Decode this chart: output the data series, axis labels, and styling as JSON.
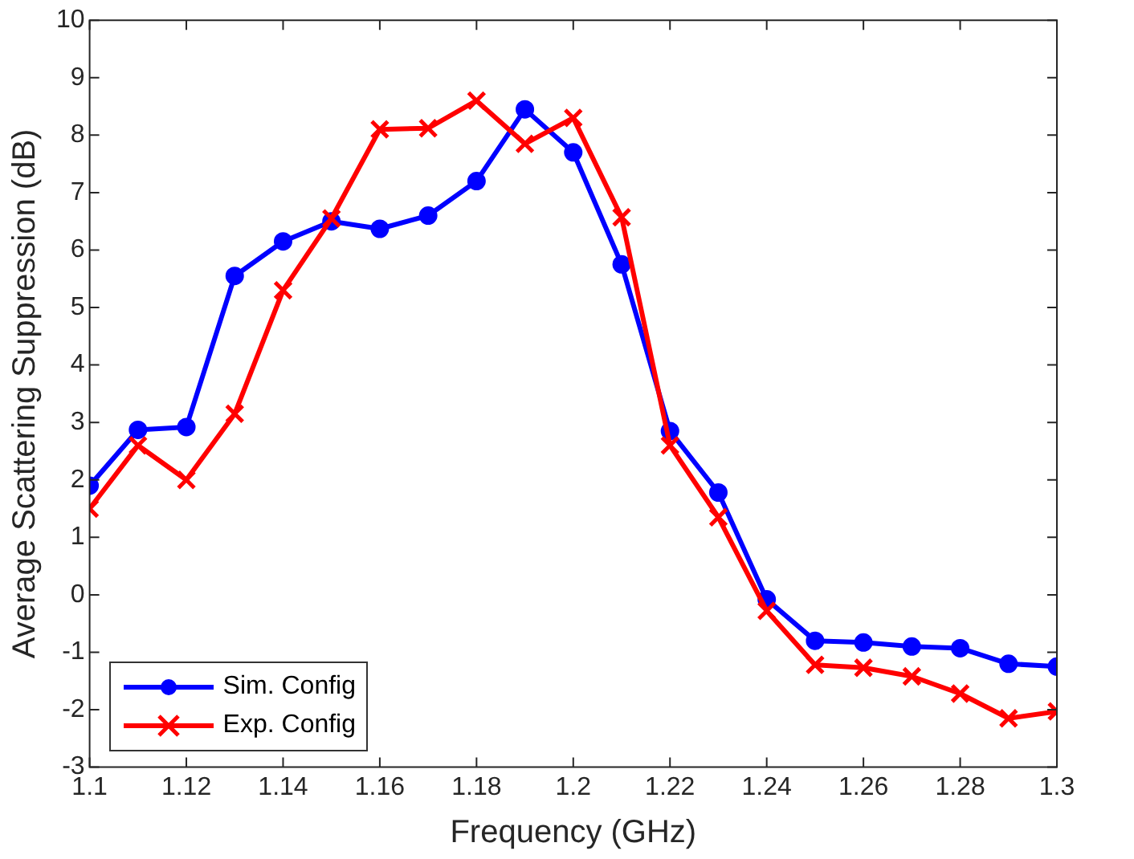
{
  "chart_data": {
    "type": "line",
    "xlabel": "Frequency (GHz)",
    "ylabel": "Average Scattering Suppression (dB)",
    "x": [
      1.1,
      1.11,
      1.12,
      1.13,
      1.14,
      1.15,
      1.16,
      1.17,
      1.18,
      1.19,
      1.2,
      1.21,
      1.22,
      1.23,
      1.24,
      1.25,
      1.26,
      1.27,
      1.28,
      1.29,
      1.3
    ],
    "series": [
      {
        "name": "Sim. Config",
        "color": "#0000ff",
        "marker": "circle",
        "values": [
          1.9,
          2.87,
          2.92,
          5.55,
          6.15,
          6.5,
          6.37,
          6.6,
          7.2,
          8.45,
          7.7,
          5.75,
          2.85,
          1.78,
          -0.08,
          -0.8,
          -0.83,
          -0.9,
          -0.93,
          -1.2,
          -1.25
        ]
      },
      {
        "name": "Exp. Config",
        "color": "#ff0000",
        "marker": "cross",
        "values": [
          1.5,
          2.6,
          2.0,
          3.15,
          5.3,
          6.55,
          8.1,
          8.12,
          8.6,
          7.85,
          8.3,
          6.57,
          2.6,
          1.35,
          -0.28,
          -1.22,
          -1.27,
          -1.42,
          -1.72,
          -2.15,
          -2.03
        ]
      }
    ],
    "xlim": [
      1.1,
      1.3
    ],
    "xticks": [
      1.1,
      1.12,
      1.14,
      1.16,
      1.18,
      1.2,
      1.22,
      1.24,
      1.26,
      1.28,
      1.3
    ],
    "ylim": [
      -3,
      10
    ],
    "yticks": [
      -3,
      -2,
      -1,
      0,
      1,
      2,
      3,
      4,
      5,
      6,
      7,
      8,
      9,
      10
    ],
    "grid": false,
    "legend": "bottom left",
    "line_style": "solid"
  }
}
